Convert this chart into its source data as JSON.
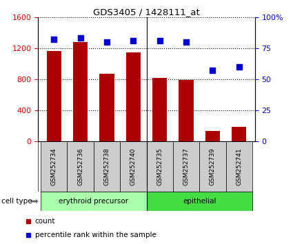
{
  "title": "GDS3405 / 1428111_at",
  "samples": [
    "GSM252734",
    "GSM252736",
    "GSM252738",
    "GSM252740",
    "GSM252735",
    "GSM252737",
    "GSM252739",
    "GSM252741"
  ],
  "counts": [
    1160,
    1280,
    870,
    1150,
    820,
    790,
    140,
    190
  ],
  "percentiles": [
    82,
    83,
    80,
    81,
    81,
    80,
    57,
    60
  ],
  "bar_color": "#aa0000",
  "dot_color": "#0000cc",
  "left_ylim": [
    0,
    1600
  ],
  "right_ylim": [
    0,
    100
  ],
  "left_yticks": [
    0,
    400,
    800,
    1200,
    1600
  ],
  "right_yticks": [
    0,
    25,
    50,
    75,
    100
  ],
  "right_yticklabels": [
    "0",
    "25",
    "50",
    "75",
    "100%"
  ],
  "cell_types": [
    {
      "label": "erythroid precursor",
      "start": 0,
      "end": 4,
      "color": "#aaffaa"
    },
    {
      "label": "epithelial",
      "start": 4,
      "end": 8,
      "color": "#44dd44"
    }
  ],
  "cell_type_label": "cell type",
  "legend_items": [
    {
      "label": "count",
      "color": "#aa0000"
    },
    {
      "label": "percentile rank within the sample",
      "color": "#0000cc"
    }
  ],
  "bg_color": "#ffffff",
  "tick_label_color_left": "#cc0000",
  "tick_label_color_right": "#0000cc",
  "sample_box_color": "#cccccc",
  "erythroid_color": "#aaffaa",
  "epithelial_color": "#44dd44"
}
